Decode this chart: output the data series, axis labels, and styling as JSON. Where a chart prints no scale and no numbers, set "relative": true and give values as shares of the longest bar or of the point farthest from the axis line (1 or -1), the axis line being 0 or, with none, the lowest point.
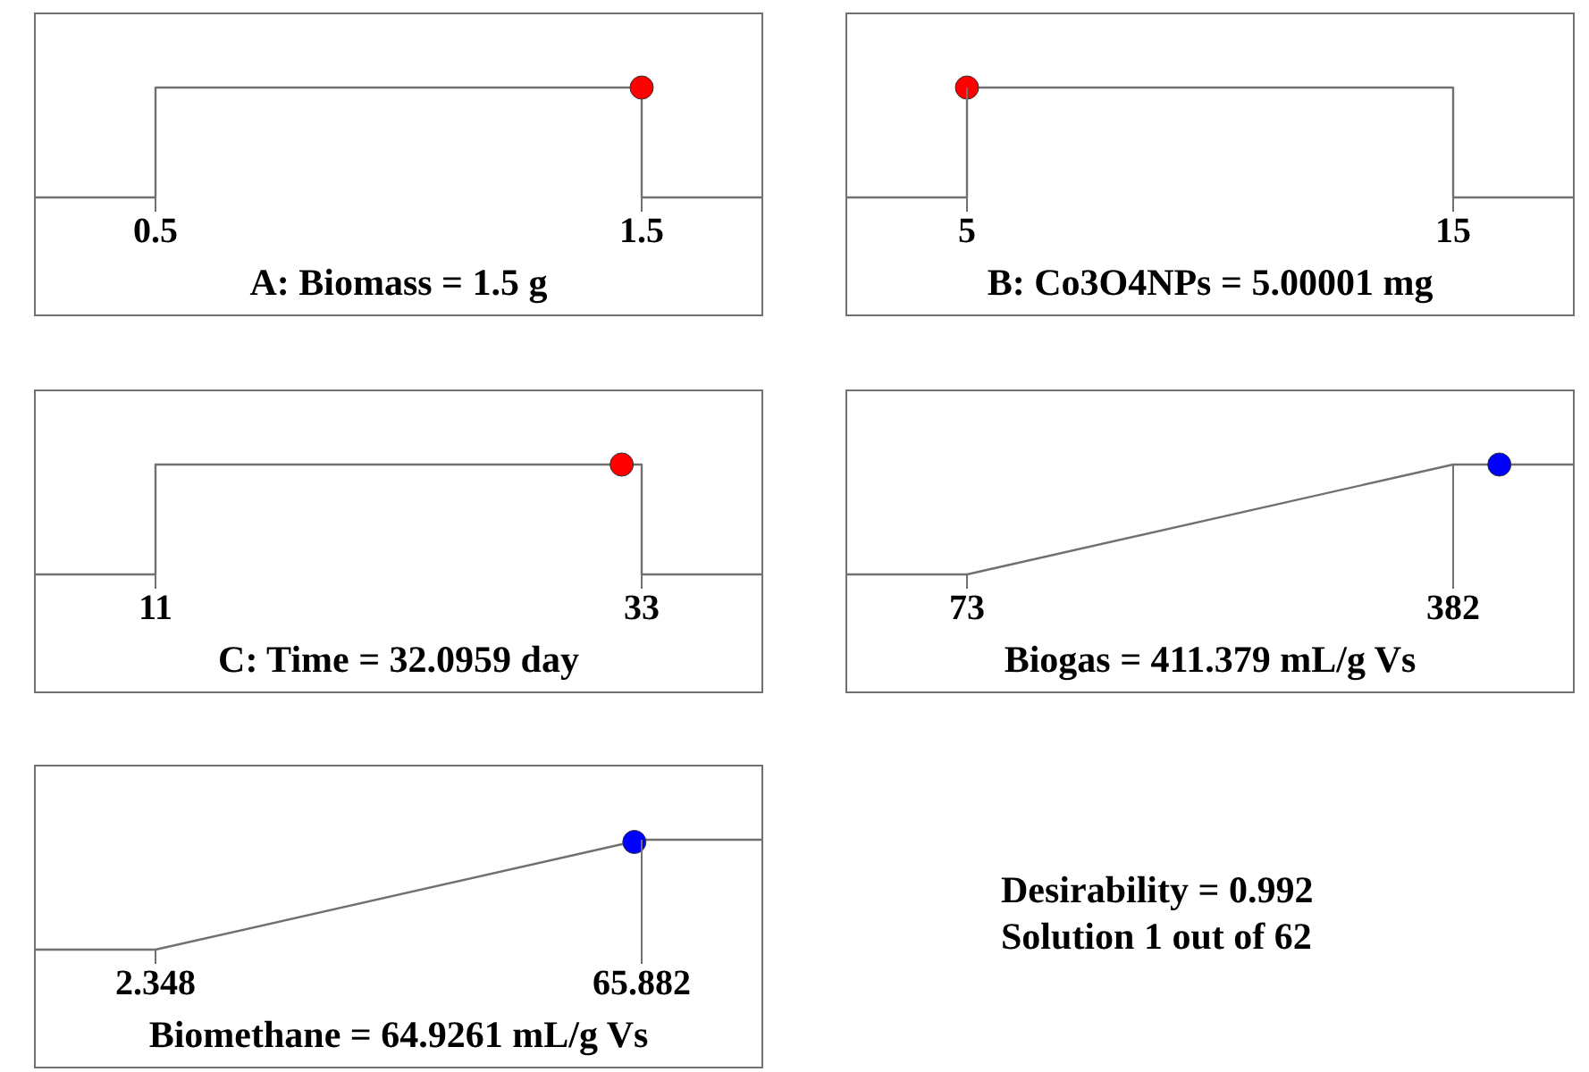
{
  "chart_data": [
    {
      "type": "line",
      "xlabel": "A: Biomass = 1.5 g",
      "relative": true,
      "xlim": [
        0.25,
        1.75
      ],
      "xticks": [
        0.5,
        1.5
      ],
      "series": [
        {
          "type": "line",
          "color": "#707070",
          "marker": "none",
          "x": [
            0.25,
            0.5,
            0.5,
            1.5,
            1.5,
            1.75
          ],
          "values": [
            0,
            0,
            1,
            1,
            0,
            0
          ]
        },
        {
          "type": "scatter",
          "color": "#ff0000",
          "marker": "circle",
          "x": [
            1.5
          ],
          "values": [
            1
          ]
        }
      ]
    },
    {
      "type": "line",
      "xlabel": "B: Co3O4NPs = 5.00001 mg",
      "relative": true,
      "xlim": [
        2.5,
        17.5
      ],
      "xticks": [
        5,
        15
      ],
      "series": [
        {
          "type": "line",
          "color": "#707070",
          "marker": "none",
          "x": [
            2.5,
            5,
            5,
            15,
            15,
            17.5
          ],
          "values": [
            0,
            0,
            1,
            1,
            0,
            0
          ]
        },
        {
          "type": "scatter",
          "color": "#ff0000",
          "marker": "circle",
          "x": [
            5.00001
          ],
          "values": [
            1
          ]
        }
      ]
    },
    {
      "type": "line",
      "xlabel": "C: Time = 32.0959 day",
      "relative": true,
      "xlim": [
        5.5,
        38.5
      ],
      "xticks": [
        11,
        33
      ],
      "series": [
        {
          "type": "line",
          "color": "#707070",
          "marker": "none",
          "x": [
            5.5,
            11,
            11,
            33,
            33,
            38.5
          ],
          "values": [
            0,
            0,
            1,
            1,
            0,
            0
          ]
        },
        {
          "type": "scatter",
          "color": "#ff0000",
          "marker": "circle",
          "x": [
            32.0959
          ],
          "values": [
            1
          ]
        }
      ]
    },
    {
      "type": "line",
      "xlabel": "Biogas = 411.379 mL/g Vs",
      "relative": true,
      "xlim": [
        -4.25,
        459.25
      ],
      "xticks": [
        73,
        382
      ],
      "series": [
        {
          "type": "line",
          "color": "#707070",
          "marker": "none",
          "x": [
            -4.25,
            73,
            382,
            459.25
          ],
          "values": [
            0,
            0,
            1,
            1
          ]
        },
        {
          "type": "scatter",
          "color": "#0000ff",
          "marker": "circle",
          "x": [
            411.379
          ],
          "values": [
            1
          ]
        }
      ]
    },
    {
      "type": "line",
      "xlabel": "Biomethane = 64.9261 mL/g Vs",
      "relative": true,
      "xlim": [
        -13.5355,
        81.7655
      ],
      "xticks": [
        2.348,
        65.882
      ],
      "series": [
        {
          "type": "line",
          "color": "#707070",
          "marker": "none",
          "x": [
            -13.5355,
            2.348,
            65.882,
            81.7655
          ],
          "values": [
            0,
            0,
            1,
            1
          ]
        },
        {
          "type": "scatter",
          "color": "#0000ff",
          "marker": "circle",
          "x": [
            64.9261
          ],
          "values": [
            0.98
          ]
        }
      ]
    },
    {
      "type": "other",
      "annotations": [
        "Desirability = 0.992",
        "Solution 1 out of 62"
      ]
    }
  ]
}
